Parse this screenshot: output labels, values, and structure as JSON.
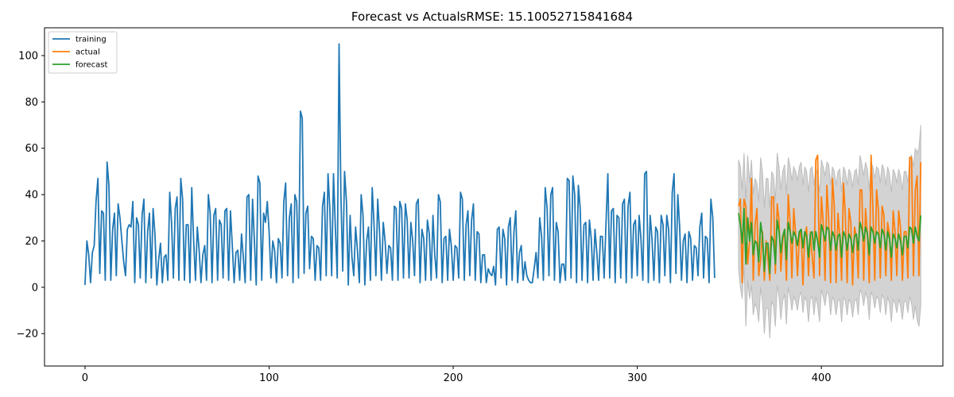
{
  "chart_data": {
    "type": "line",
    "title": "Forecast vs ActualsRMSE: 15.10052715841684",
    "xlabel": "",
    "ylabel": "",
    "xlim": [
      -22,
      466
    ],
    "ylim": [
      -34,
      112
    ],
    "xticks": [
      0,
      100,
      200,
      300,
      400
    ],
    "yticks": [
      -20,
      0,
      20,
      40,
      60,
      80,
      100
    ],
    "grid": false,
    "legend": "top-left",
    "colors": {
      "training": "#1f77b4",
      "actual": "#ff7f0e",
      "forecast": "#2ca02c",
      "band": "#d3d3d3"
    },
    "series": [
      {
        "name": "training",
        "x_start": 0,
        "x_step": 1,
        "values": [
          1,
          20,
          14,
          2,
          15,
          18,
          37,
          47,
          6,
          33,
          32,
          3,
          54,
          44,
          3,
          25,
          32,
          5,
          36,
          30,
          20,
          11,
          5,
          25,
          27,
          26,
          37,
          2,
          30,
          27,
          4,
          31,
          38,
          2,
          24,
          32,
          4,
          34,
          23,
          1,
          12,
          19,
          2,
          13,
          14,
          3,
          41,
          28,
          4,
          34,
          39,
          3,
          47,
          38,
          3,
          27,
          27,
          2,
          43,
          20,
          3,
          26,
          16,
          2,
          14,
          18,
          3,
          40,
          32,
          2,
          31,
          34,
          3,
          29,
          27,
          4,
          33,
          34,
          3,
          33,
          18,
          2,
          15,
          16,
          3,
          23,
          13,
          2,
          39,
          40,
          3,
          38,
          20,
          1,
          48,
          45,
          3,
          32,
          28,
          37,
          24,
          4,
          20,
          16,
          2,
          21,
          19,
          4,
          37,
          45,
          5,
          30,
          36,
          2,
          40,
          37,
          4,
          76,
          73,
          6,
          32,
          35,
          8,
          22,
          21,
          3,
          18,
          17,
          3,
          35,
          41,
          5,
          49,
          34,
          5,
          49,
          25,
          4,
          105,
          40,
          7,
          50,
          37,
          1,
          31,
          13,
          5,
          26,
          16,
          2,
          40,
          31,
          1,
          20,
          26,
          3,
          43,
          27,
          5,
          38,
          24,
          3,
          28,
          20,
          6,
          18,
          17,
          3,
          35,
          34,
          3,
          37,
          34,
          4,
          36,
          29,
          4,
          28,
          20,
          5,
          36,
          38,
          2,
          25,
          21,
          3,
          29,
          23,
          3,
          31,
          14,
          4,
          40,
          37,
          2,
          21,
          22,
          3,
          25,
          18,
          3,
          18,
          17,
          4,
          41,
          38,
          3,
          27,
          33,
          5,
          29,
          36,
          3,
          24,
          23,
          2,
          14,
          14,
          2,
          8,
          6,
          5,
          9,
          1,
          25,
          26,
          4,
          25,
          21,
          1,
          26,
          30,
          3,
          24,
          33,
          2,
          15,
          18,
          3,
          11,
          5,
          3,
          2,
          2,
          8,
          15,
          4,
          30,
          22,
          3,
          43,
          34,
          5,
          40,
          43,
          3,
          28,
          24,
          2,
          10,
          10,
          3,
          47,
          46,
          4,
          48,
          40,
          2,
          44,
          34,
          3,
          27,
          28,
          2,
          29,
          21,
          3,
          25,
          15,
          3,
          22,
          22,
          4,
          28,
          49,
          4,
          33,
          34,
          2,
          31,
          30,
          4,
          36,
          38,
          2,
          35,
          41,
          4,
          27,
          29,
          5,
          31,
          21,
          3,
          49,
          50,
          2,
          31,
          21,
          3,
          26,
          24,
          2,
          31,
          27,
          5,
          31,
          25,
          2,
          41,
          49,
          6,
          40,
          26,
          3,
          20,
          23,
          2,
          24,
          21,
          3,
          18,
          17,
          5,
          26,
          32,
          4,
          22,
          21,
          2,
          38,
          30,
          4
        ]
      },
      {
        "name": "actual",
        "x_start": 355,
        "x_step": 1,
        "values": [
          35,
          38,
          2,
          38,
          35,
          10,
          20,
          47,
          3,
          27,
          34,
          5,
          12,
          24,
          3,
          20,
          12,
          3,
          39,
          39,
          6,
          36,
          29,
          7,
          20,
          25,
          3,
          40,
          28,
          4,
          34,
          23,
          5,
          21,
          25,
          1,
          22,
          26,
          5,
          24,
          13,
          4,
          55,
          57,
          5,
          39,
          28,
          3,
          44,
          29,
          2,
          47,
          35,
          2,
          32,
          22,
          3,
          45,
          31,
          2,
          34,
          28,
          1,
          26,
          22,
          4,
          42,
          42,
          3,
          34,
          23,
          2,
          57,
          34,
          3,
          42,
          33,
          4,
          35,
          31,
          5,
          28,
          23,
          3,
          33,
          24,
          5,
          33,
          26,
          3,
          24,
          24,
          4,
          56,
          56,
          5,
          42,
          48,
          5,
          54
        ]
      },
      {
        "name": "forecast",
        "x_start": 355,
        "x_step": 1,
        "values": [
          32,
          27,
          19,
          34,
          10,
          30,
          20,
          28,
          14,
          20,
          19,
          11,
          28,
          22,
          7,
          19,
          19,
          6,
          22,
          20,
          10,
          29,
          24,
          15,
          22,
          25,
          12,
          28,
          24,
          19,
          24,
          22,
          18,
          24,
          25,
          17,
          24,
          22,
          13,
          23,
          24,
          16,
          24,
          20,
          13,
          27,
          24,
          20,
          26,
          25,
          16,
          24,
          22,
          16,
          22,
          23,
          13,
          24,
          22,
          16,
          23,
          21,
          15,
          22,
          23,
          16,
          28,
          25,
          20,
          26,
          23,
          14,
          26,
          24,
          19,
          24,
          23,
          17,
          25,
          23,
          16,
          24,
          21,
          13,
          23,
          21,
          17,
          23,
          20,
          14,
          22,
          22,
          17,
          26,
          25,
          19,
          26,
          22,
          20,
          31
        ]
      },
      {
        "name": "band_upper",
        "x_start": 355,
        "x_step": 1,
        "values": [
          55,
          52,
          42,
          58,
          37,
          57,
          45,
          55,
          40,
          47,
          45,
          37,
          56,
          50,
          34,
          47,
          47,
          34,
          50,
          48,
          37,
          58,
          52,
          42,
          50,
          53,
          40,
          56,
          52,
          46,
          52,
          50,
          46,
          52,
          54,
          44,
          52,
          50,
          41,
          51,
          52,
          44,
          52,
          48,
          41,
          55,
          52,
          48,
          54,
          53,
          44,
          52,
          50,
          44,
          50,
          51,
          41,
          52,
          50,
          44,
          51,
          49,
          43,
          50,
          51,
          44,
          57,
          53,
          48,
          54,
          51,
          42,
          54,
          52,
          47,
          52,
          51,
          45,
          53,
          51,
          44,
          52,
          49,
          41,
          51,
          49,
          45,
          51,
          48,
          42,
          50,
          50,
          45,
          56,
          57,
          52,
          60,
          58,
          60,
          70
        ]
      },
      {
        "name": "band_lower",
        "x_start": 355,
        "x_step": 1,
        "values": [
          8,
          0,
          -5,
          10,
          -17,
          3,
          -5,
          1,
          -12,
          -7,
          -9,
          -15,
          0,
          -6,
          -20,
          -9,
          -9,
          -22,
          -6,
          -8,
          -17,
          1,
          -4,
          -14,
          -6,
          -3,
          -16,
          0,
          -4,
          -10,
          -4,
          -6,
          -10,
          -4,
          -2,
          -11,
          -4,
          -6,
          -15,
          -5,
          -4,
          -12,
          -4,
          -8,
          -15,
          -1,
          -4,
          -8,
          -2,
          -3,
          -12,
          -4,
          -6,
          -12,
          -6,
          -5,
          -15,
          -4,
          -6,
          -12,
          -5,
          -7,
          -13,
          -6,
          -5,
          -12,
          -1,
          -3,
          -8,
          -2,
          -5,
          -14,
          -2,
          -4,
          -9,
          -4,
          -5,
          -11,
          -3,
          -5,
          -12,
          -4,
          -7,
          -15,
          -5,
          -7,
          -11,
          -5,
          -8,
          -14,
          -6,
          -6,
          -11,
          -4,
          -7,
          -14,
          -8,
          -14,
          -17,
          -8
        ]
      }
    ]
  }
}
